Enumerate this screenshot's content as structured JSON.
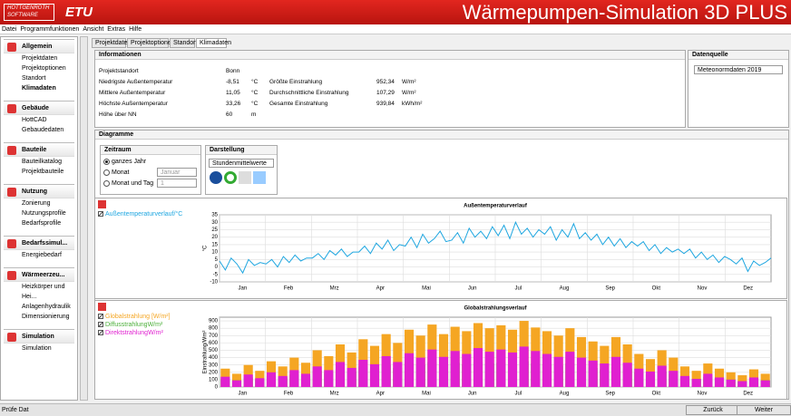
{
  "ui": {
    "brand": [
      "HOTTGENROTH",
      "SOFTWARE"
    ],
    "logo": "ETU",
    "app_title": "Wärmepumpen-Simulation 3D PLUS",
    "menu": [
      "Datei",
      "Programmfunktionen",
      "Ansicht",
      "Extras",
      "Hilfe"
    ],
    "sidebar": [
      {
        "title": "Allgemein",
        "items": [
          "Projektdaten",
          "Projektoptionen",
          "Standort",
          "Klimadaten"
        ]
      },
      {
        "title": "Gebäude",
        "items": [
          "HottCAD",
          "Gebaudedaten"
        ]
      },
      {
        "title": "Bauteile",
        "items": [
          "Bauteilkatalog",
          "Projektbauteile"
        ]
      },
      {
        "title": "Nutzung",
        "items": [
          "Zonierung",
          "Nutzungsprofile",
          "Bedarfsprofile"
        ]
      },
      {
        "title": "Bedarfssimul...",
        "items": [
          "Energiebedarf"
        ]
      },
      {
        "title": "Wärmeerzeu...",
        "items": [
          "Heizkörper und Hei...",
          "Anlagenhydraulik",
          "Dimensionierung"
        ]
      },
      {
        "title": "Simulation",
        "items": [
          "Simulation"
        ]
      }
    ],
    "tabs": [
      "Projektdaten",
      "Projektoptionen",
      "Standort",
      "Klimadaten"
    ],
    "info_title": "Informationen",
    "info_rows": [
      [
        "Projektstandort",
        "Bonn"
      ],
      [
        "Niedrigste Außentemperatur",
        "-8,51",
        "°C",
        "Größte Einstrahlung",
        "952,34",
        "W/m²"
      ],
      [
        "Mittlere Außentemperatur",
        "11,05",
        "°C",
        "Durchschnittliche Einstrahlung",
        "107,29",
        "W/m²"
      ],
      [
        "Höchste Außentemperatur",
        "33,26",
        "°C",
        "Gesamte Einstrahlung",
        "939,84",
        "kWh/m²"
      ],
      [
        "Höhe über NN",
        "60",
        "m"
      ]
    ],
    "source_title": "Datenquelle",
    "source_value": "Meteonormdaten 2019",
    "diagram_title": "Diagramme",
    "period_title": "Zeitraum",
    "period_options": [
      "ganzes Jahr",
      "Monat",
      "Monat und Tag"
    ],
    "month_value": "Januar",
    "day_value": "1",
    "display_title": "Darstellung",
    "display_value": "Stundenmittelwerte",
    "status": "Prüfe Dat",
    "back": "Zurück",
    "next": "Weiter"
  },
  "chart_data": [
    {
      "type": "line",
      "title": "Außentemperaturverlauf",
      "y_label": "°C",
      "ylim": [
        -10,
        35
      ],
      "yticks": [
        -10,
        -5,
        0,
        5,
        10,
        15,
        20,
        25,
        30,
        35
      ],
      "grid": true,
      "month_labels": [
        "Jan",
        "Feb",
        "Mrz",
        "Apr",
        "Mai",
        "Jun",
        "Jul",
        "Aug",
        "Sep",
        "Okt",
        "Nov",
        "Dez"
      ],
      "series": [
        {
          "name": "Außentemperaturverlauf/°C",
          "color": "#1ea6e0",
          "values": [
            4,
            -2,
            6,
            2,
            -4,
            5,
            1,
            3,
            2,
            5,
            0,
            7,
            3,
            8,
            4,
            6,
            6,
            9,
            5,
            11,
            8,
            12,
            7,
            10,
            10,
            14,
            9,
            16,
            12,
            18,
            11,
            15,
            14,
            20,
            13,
            22,
            16,
            19,
            24,
            17,
            18,
            23,
            16,
            26,
            20,
            24,
            19,
            27,
            21,
            28,
            19,
            30,
            22,
            26,
            20,
            25,
            22,
            27,
            18,
            25,
            20,
            29,
            19,
            23,
            18,
            22,
            15,
            20,
            14,
            19,
            13,
            17,
            14,
            17,
            11,
            15,
            9,
            13,
            10,
            12,
            9,
            12,
            6,
            10,
            5,
            8,
            3,
            7,
            5,
            2,
            6,
            -3,
            4,
            1,
            3,
            6
          ]
        }
      ]
    },
    {
      "type": "bar",
      "title": "Globalstrahlungsverlauf",
      "y_label": "Einstrahlung/Wm²",
      "ylim": [
        0,
        950
      ],
      "yticks": [
        0,
        100,
        200,
        300,
        400,
        500,
        600,
        700,
        800,
        900
      ],
      "grid": true,
      "month_labels": [
        "Jan",
        "Feb",
        "Mrz",
        "Apr",
        "Mai",
        "Jun",
        "Jul",
        "Aug",
        "Sep",
        "Okt",
        "Nov",
        "Dez"
      ],
      "series": [
        {
          "name": "Globalstrahlung [W/m²]",
          "color": "#f5a623",
          "values": [
            250,
            180,
            300,
            220,
            350,
            280,
            400,
            330,
            500,
            420,
            580,
            470,
            650,
            560,
            720,
            600,
            780,
            700,
            850,
            720,
            820,
            760,
            870,
            800,
            840,
            780,
            900,
            810,
            760,
            700,
            800,
            680,
            620,
            560,
            680,
            580,
            450,
            380,
            500,
            400,
            280,
            220,
            320,
            250,
            200,
            160,
            240,
            180
          ]
        },
        {
          "name": "DiffusstrahlungW/m²",
          "color": "#4caf3a",
          "values": [
            110,
            90,
            130,
            100,
            150,
            130,
            170,
            150,
            220,
            190,
            240,
            210,
            280,
            250,
            300,
            260,
            320,
            300,
            340,
            310,
            330,
            310,
            340,
            320,
            330,
            310,
            350,
            320,
            310,
            290,
            320,
            280,
            260,
            240,
            270,
            250,
            200,
            170,
            210,
            180,
            130,
            110,
            140,
            120,
            100,
            80,
            110,
            90
          ]
        },
        {
          "name": "DirektstrahlungW/m²",
          "color": "#e020d0",
          "values": [
            140,
            90,
            170,
            120,
            200,
            150,
            230,
            180,
            280,
            230,
            340,
            260,
            370,
            310,
            420,
            340,
            460,
            400,
            510,
            410,
            490,
            450,
            530,
            480,
            510,
            470,
            550,
            490,
            450,
            410,
            480,
            400,
            360,
            320,
            410,
            330,
            250,
            210,
            290,
            220,
            150,
            110,
            180,
            130,
            100,
            80,
            130,
            90
          ]
        }
      ]
    }
  ]
}
